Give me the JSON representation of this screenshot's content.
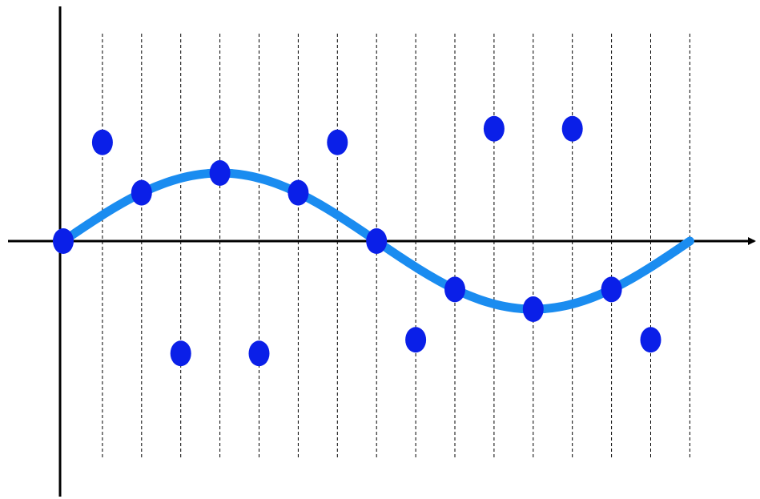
{
  "chart_data": {
    "type": "scatter",
    "title": "",
    "xlabel": "",
    "ylabel": "",
    "xlim": [
      -0.7,
      17.8
    ],
    "ylim": [
      -3.7,
      3.5
    ],
    "grid": {
      "vertical_dashed": true,
      "horizontal": false
    },
    "gridlines_x": [
      1,
      2,
      3,
      4,
      5,
      6,
      7,
      8,
      9,
      10,
      11,
      12,
      13,
      14,
      15,
      16
    ],
    "curve": {
      "function": "sine",
      "amplitude": 1,
      "period": 16,
      "x_range": [
        0,
        16
      ],
      "color": "#1a8cf0"
    },
    "points": {
      "color": "#0a1fe8",
      "x": [
        0,
        1,
        2,
        3,
        4,
        5,
        6,
        7,
        8,
        9,
        10,
        11,
        12,
        13,
        14,
        15
      ],
      "y": [
        0,
        1.45,
        0.71,
        -1.65,
        1.0,
        -1.65,
        0.71,
        1.45,
        0,
        -1.45,
        -0.71,
        1.65,
        -1.0,
        1.65,
        -0.71,
        -1.45
      ]
    },
    "axis_color": "#000000"
  }
}
